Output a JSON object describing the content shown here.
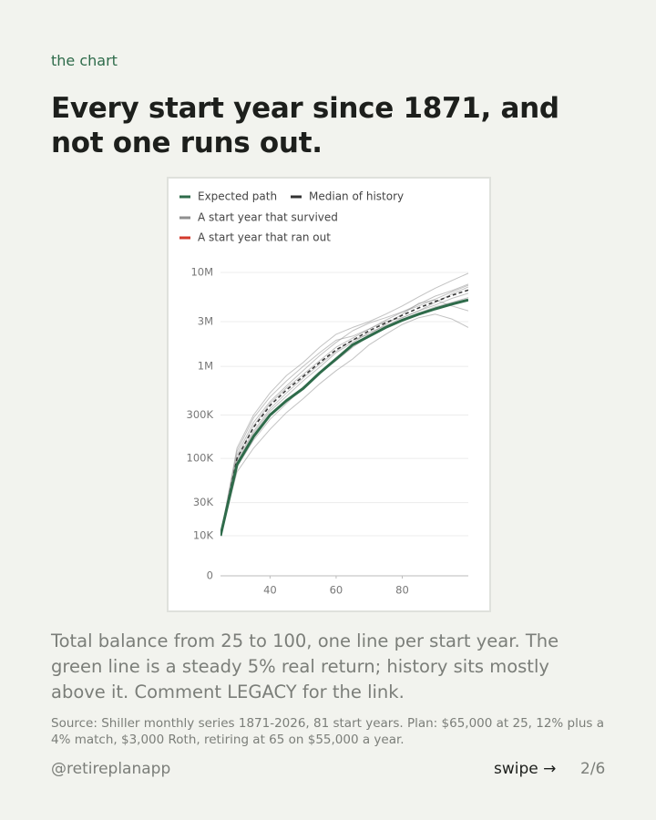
{
  "eyebrow": "the chart",
  "title": "Every start year since 1871, and not one runs out.",
  "caption": "Total balance from 25 to 100, one line per start year. The green line is a steady 5% real return; history sits mostly above it. Comment LEGACY for the link.",
  "source": "Source: Shiller monthly series 1871-2026, 81 start years. Plan: $65,000 at 25, 12% plus a 4% match, $3,000 Roth, retiring at 65 on $55,000 a year.",
  "footer": {
    "handle": "@retireplanapp",
    "swipe": "swipe →",
    "page": "2/6"
  },
  "chart_data": {
    "type": "line",
    "scale": "symlog",
    "symlog_constant": 6000,
    "grid": true,
    "x": [
      25,
      30,
      35,
      40,
      45,
      50,
      55,
      60,
      65,
      70,
      75,
      80,
      85,
      90,
      95,
      100
    ],
    "xlim": [
      25,
      100
    ],
    "xticks": [
      40,
      60,
      80
    ],
    "ylim": [
      0,
      10000000
    ],
    "yticks": [
      0,
      {
        "value": 10000,
        "label": "10K"
      },
      {
        "value": 30000,
        "label": "30K"
      },
      {
        "value": 100000,
        "label": "100K"
      },
      {
        "value": 300000,
        "label": "300K"
      },
      {
        "value": 1000000,
        "label": "1M"
      },
      {
        "value": 3000000,
        "label": "3M"
      },
      {
        "value": 10000000,
        "label": "10M"
      }
    ],
    "series": [
      {
        "name": "Expected path",
        "color": "#2e6b4a",
        "width": 3,
        "values": [
          10000,
          85000,
          175000,
          300000,
          430000,
          580000,
          850000,
          1200000,
          1700000,
          2100000,
          2600000,
          3100000,
          3600000,
          4100000,
          4600000,
          5100000
        ]
      },
      {
        "name": "Median of history",
        "color": "#333333",
        "width": 1.5,
        "dash": true,
        "values": [
          10000,
          100000,
          220000,
          380000,
          560000,
          780000,
          1100000,
          1500000,
          1900000,
          2400000,
          2900000,
          3500000,
          4200000,
          4900000,
          5700000,
          6500000
        ]
      },
      {
        "name": "A start year that survived",
        "color": "#8f8f8f",
        "width": 1,
        "lines": [
          [
            10000,
            130000,
            300000,
            520000,
            800000,
            1100000,
            1600000,
            2200000,
            2600000,
            3000000,
            3600000,
            4400000,
            5500000,
            6800000,
            8200000,
            9800000
          ],
          [
            10000,
            70000,
            130000,
            210000,
            320000,
            450000,
            650000,
            900000,
            1200000,
            1700000,
            2200000,
            2800000,
            3300000,
            3600000,
            3200000,
            2600000
          ],
          [
            10000,
            110000,
            250000,
            420000,
            620000,
            900000,
            1300000,
            1800000,
            2400000,
            2900000,
            3300000,
            3800000,
            4600000,
            5600000,
            6400000,
            7500000
          ],
          [
            10000,
            90000,
            190000,
            330000,
            480000,
            700000,
            980000,
            1400000,
            1800000,
            2300000,
            2700000,
            3300000,
            3900000,
            4500000,
            5300000,
            6000000
          ],
          [
            10000,
            120000,
            280000,
            470000,
            700000,
            1000000,
            1400000,
            1900000,
            2100000,
            2500000,
            3100000,
            3800000,
            4400000,
            5200000,
            6200000,
            7300000
          ],
          [
            10000,
            80000,
            160000,
            270000,
            400000,
            600000,
            850000,
            1150000,
            1600000,
            2100000,
            2600000,
            3200000,
            3700000,
            4300000,
            4800000,
            5400000
          ],
          [
            10000,
            100000,
            230000,
            400000,
            590000,
            820000,
            1150000,
            1600000,
            2000000,
            2500000,
            3000000,
            3300000,
            3900000,
            4800000,
            5900000,
            7000000
          ],
          [
            10000,
            95000,
            200000,
            350000,
            520000,
            750000,
            1050000,
            1450000,
            1900000,
            2200000,
            2800000,
            3600000,
            4700000,
            5100000,
            4400000,
            3900000
          ]
        ]
      },
      {
        "name": "A start year that ran out",
        "color": "#d33a2c",
        "width": 1,
        "lines": []
      }
    ]
  }
}
